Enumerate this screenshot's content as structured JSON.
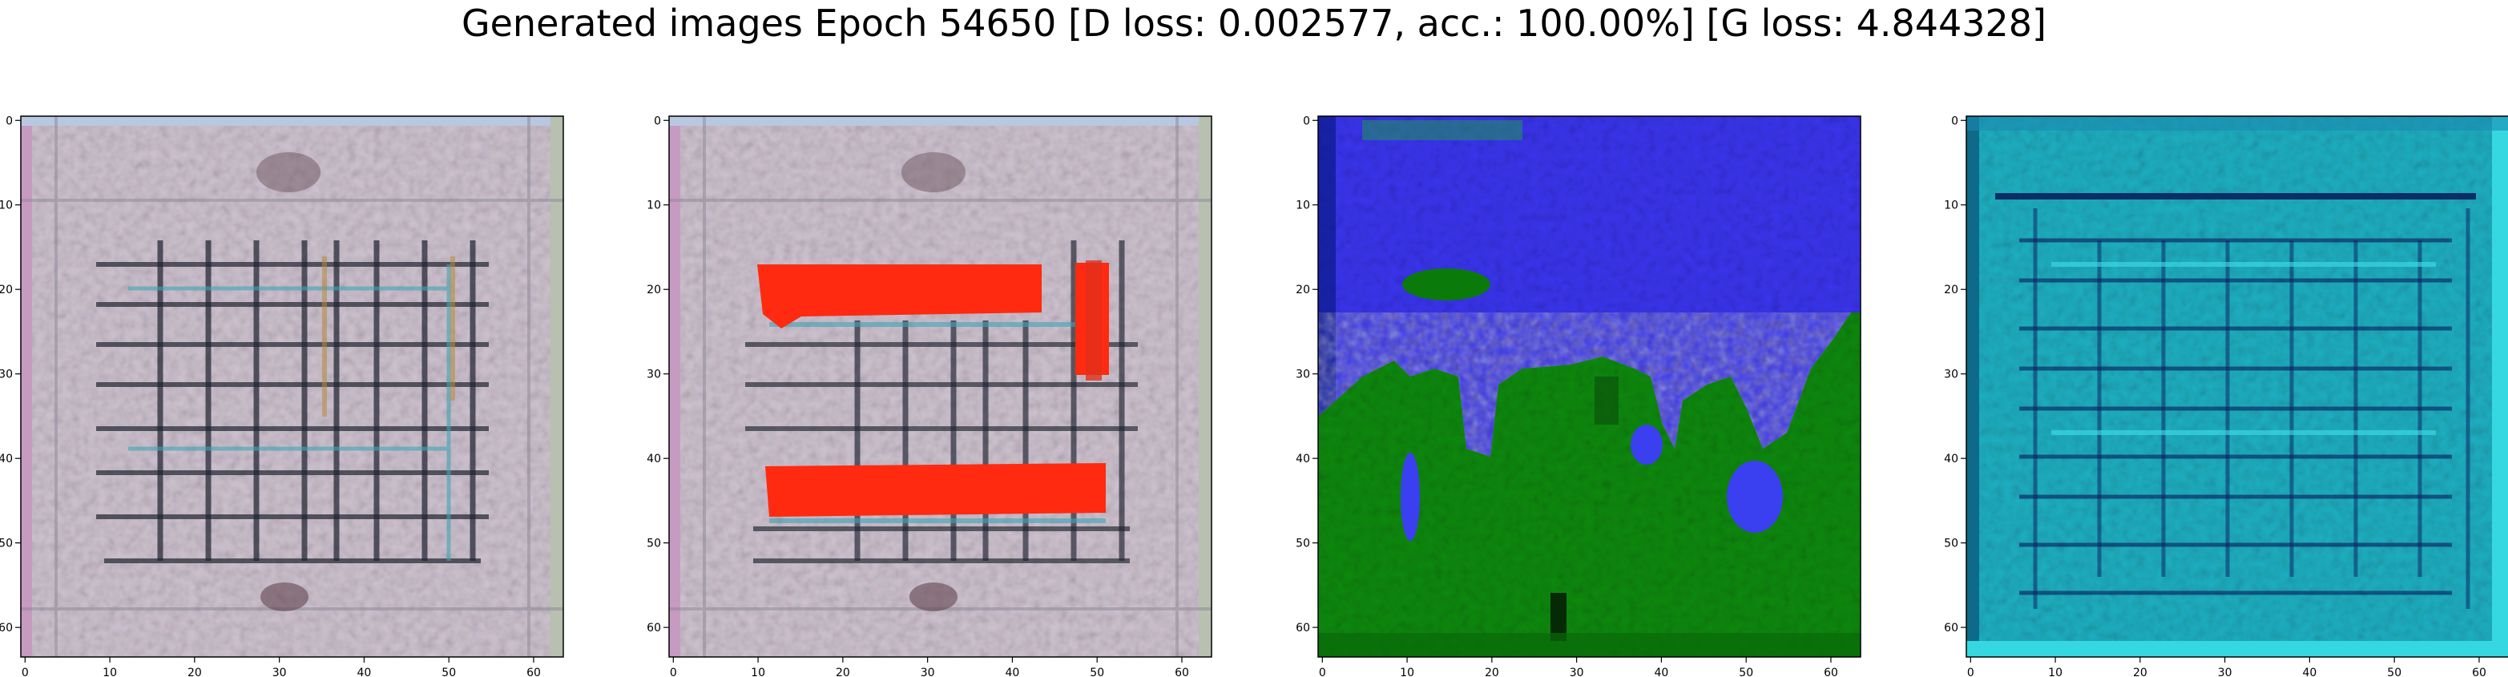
{
  "title": "Generated images Epoch 54650 [D loss: 0.002577, acc.: 100.00%] [G loss: 4.844328]",
  "panels": [
    {
      "image": "gan-sample-grey-grid-icon",
      "base_color": "#d9cfd8",
      "line_color": "#2a2f3a",
      "accent_colors": [
        "#3fa4b5",
        "#b48a3c",
        "#7a4a8c"
      ],
      "xticks": [
        "0",
        "10",
        "20",
        "30",
        "40",
        "50",
        "60"
      ],
      "yticks": [
        "0",
        "10",
        "20",
        "30",
        "40",
        "50",
        "60"
      ]
    },
    {
      "image": "gan-sample-grey-grid-red-bars-icon",
      "base_color": "#d9cfd8",
      "line_color": "#2a2f3a",
      "accent_colors": [
        "#ff2a10",
        "#3fa4b5"
      ],
      "xticks": [
        "0",
        "10",
        "20",
        "30",
        "40",
        "50",
        "60"
      ],
      "yticks": [
        "0",
        "10",
        "20",
        "30",
        "40",
        "50",
        "60"
      ]
    },
    {
      "image": "gan-sample-blue-green-landscape-icon",
      "base_color": "#2f2af0",
      "line_color": "#0a7a0a",
      "accent_colors": [
        "#119d11",
        "#5a6af0"
      ],
      "xticks": [
        "0",
        "10",
        "20",
        "30",
        "40",
        "50",
        "60"
      ],
      "yticks": [
        "0",
        "10",
        "20",
        "30",
        "40",
        "50",
        "60"
      ]
    },
    {
      "image": "gan-sample-cyan-grid-icon",
      "base_color": "#22b8c8",
      "line_color": "#0a1a5a",
      "accent_colors": [
        "#3fe0ea",
        "#1a6aa0"
      ],
      "xticks": [
        "0",
        "10",
        "20",
        "30",
        "40",
        "50",
        "60"
      ],
      "yticks": [
        "0",
        "10",
        "20",
        "30",
        "40",
        "50",
        "60"
      ]
    }
  ]
}
